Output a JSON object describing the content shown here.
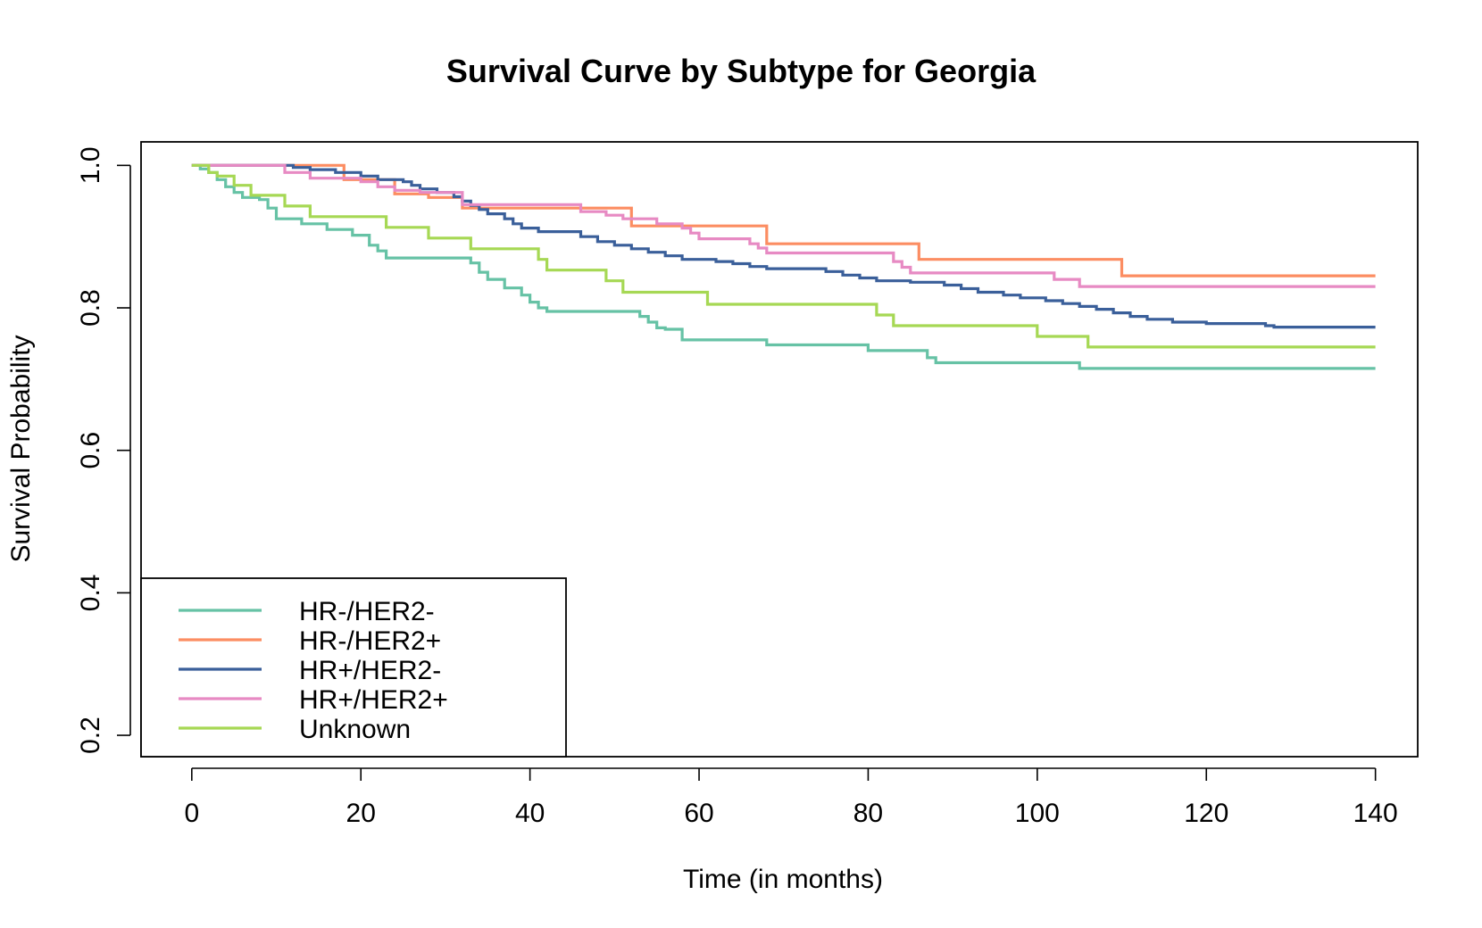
{
  "chart_data": {
    "type": "line",
    "step": true,
    "title": "Survival Curve by Subtype for Georgia",
    "xlabel": "Time (in months)",
    "ylabel": "Survival Probability",
    "xlim": [
      -6,
      145
    ],
    "ylim": [
      0.17,
      1.033
    ],
    "xticks": [
      "0",
      "20",
      "40",
      "60",
      "80",
      "100",
      "120",
      "140"
    ],
    "yticks": [
      "0.2",
      "0.4",
      "0.6",
      "0.8",
      "1.0"
    ],
    "grid": false,
    "legend_position": "bottom-left",
    "series": [
      {
        "name": "HR-/HER2-",
        "color": "#66c2a5",
        "points": [
          [
            0,
            1.0
          ],
          [
            1,
            0.995
          ],
          [
            2,
            0.99
          ],
          [
            3,
            0.98
          ],
          [
            4,
            0.97
          ],
          [
            5,
            0.962
          ],
          [
            6,
            0.955
          ],
          [
            8,
            0.952
          ],
          [
            9,
            0.94
          ],
          [
            10,
            0.925
          ],
          [
            13,
            0.918
          ],
          [
            16,
            0.91
          ],
          [
            18,
            0.91
          ],
          [
            19,
            0.902
          ],
          [
            20,
            0.902
          ],
          [
            21,
            0.888
          ],
          [
            22,
            0.88
          ],
          [
            23,
            0.87
          ],
          [
            26,
            0.87
          ],
          [
            32,
            0.87
          ],
          [
            33,
            0.863
          ],
          [
            34,
            0.85
          ],
          [
            35,
            0.84
          ],
          [
            37,
            0.828
          ],
          [
            39,
            0.818
          ],
          [
            40,
            0.808
          ],
          [
            41,
            0.8
          ],
          [
            42,
            0.795
          ],
          [
            50,
            0.795
          ],
          [
            53,
            0.788
          ],
          [
            54,
            0.78
          ],
          [
            55,
            0.772
          ],
          [
            56,
            0.77
          ],
          [
            58,
            0.755
          ],
          [
            68,
            0.748
          ],
          [
            80,
            0.74
          ],
          [
            87,
            0.73
          ],
          [
            88,
            0.723
          ],
          [
            105,
            0.715
          ],
          [
            140,
            0.715
          ]
        ]
      },
      {
        "name": "HR-/HER2+",
        "color": "#fc8d62",
        "points": [
          [
            0,
            1.0
          ],
          [
            18,
            0.98
          ],
          [
            24,
            0.96
          ],
          [
            28,
            0.955
          ],
          [
            32,
            0.94
          ],
          [
            45,
            0.94
          ],
          [
            52,
            0.915
          ],
          [
            60,
            0.915
          ],
          [
            68,
            0.89
          ],
          [
            86,
            0.868
          ],
          [
            110,
            0.845
          ],
          [
            140,
            0.845
          ]
        ]
      },
      {
        "name": "HR+/HER2-",
        "color": "#3a5f9a",
        "points": [
          [
            0,
            1.0
          ],
          [
            11,
            1.0
          ],
          [
            12,
            0.997
          ],
          [
            14,
            0.994
          ],
          [
            17,
            0.99
          ],
          [
            20,
            0.985
          ],
          [
            22,
            0.98
          ],
          [
            25,
            0.977
          ],
          [
            26,
            0.972
          ],
          [
            27,
            0.967
          ],
          [
            29,
            0.962
          ],
          [
            31,
            0.956
          ],
          [
            32,
            0.95
          ],
          [
            33,
            0.944
          ],
          [
            34,
            0.938
          ],
          [
            35,
            0.932
          ],
          [
            37,
            0.925
          ],
          [
            38,
            0.918
          ],
          [
            39,
            0.912
          ],
          [
            41,
            0.907
          ],
          [
            46,
            0.9
          ],
          [
            48,
            0.893
          ],
          [
            50,
            0.888
          ],
          [
            52,
            0.883
          ],
          [
            54,
            0.878
          ],
          [
            56,
            0.873
          ],
          [
            58,
            0.868
          ],
          [
            62,
            0.865
          ],
          [
            64,
            0.862
          ],
          [
            66,
            0.858
          ],
          [
            68,
            0.855
          ],
          [
            75,
            0.851
          ],
          [
            77,
            0.846
          ],
          [
            79,
            0.842
          ],
          [
            81,
            0.838
          ],
          [
            85,
            0.836
          ],
          [
            89,
            0.832
          ],
          [
            91,
            0.827
          ],
          [
            93,
            0.822
          ],
          [
            96,
            0.818
          ],
          [
            98,
            0.814
          ],
          [
            101,
            0.81
          ],
          [
            103,
            0.806
          ],
          [
            105,
            0.802
          ],
          [
            107,
            0.798
          ],
          [
            109,
            0.793
          ],
          [
            111,
            0.788
          ],
          [
            113,
            0.784
          ],
          [
            116,
            0.78
          ],
          [
            120,
            0.778
          ],
          [
            127,
            0.775
          ],
          [
            128,
            0.773
          ],
          [
            140,
            0.773
          ]
        ]
      },
      {
        "name": "HR+/HER2+",
        "color": "#e78ac3",
        "points": [
          [
            0,
            1.0
          ],
          [
            11,
            0.99
          ],
          [
            14,
            0.982
          ],
          [
            20,
            0.977
          ],
          [
            22,
            0.97
          ],
          [
            24,
            0.965
          ],
          [
            27,
            0.962
          ],
          [
            32,
            0.945
          ],
          [
            46,
            0.935
          ],
          [
            49,
            0.93
          ],
          [
            51,
            0.925
          ],
          [
            55,
            0.918
          ],
          [
            58,
            0.912
          ],
          [
            59,
            0.905
          ],
          [
            60,
            0.897
          ],
          [
            66,
            0.89
          ],
          [
            67,
            0.884
          ],
          [
            68,
            0.877
          ],
          [
            83,
            0.865
          ],
          [
            84,
            0.857
          ],
          [
            85,
            0.849
          ],
          [
            102,
            0.84
          ],
          [
            105,
            0.83
          ],
          [
            140,
            0.83
          ]
        ]
      },
      {
        "name": "Unknown",
        "color": "#a6d854",
        "points": [
          [
            0,
            1.0
          ],
          [
            2,
            0.99
          ],
          [
            3,
            0.985
          ],
          [
            5,
            0.972
          ],
          [
            7,
            0.958
          ],
          [
            11,
            0.943
          ],
          [
            14,
            0.928
          ],
          [
            23,
            0.913
          ],
          [
            28,
            0.898
          ],
          [
            33,
            0.883
          ],
          [
            41,
            0.868
          ],
          [
            42,
            0.853
          ],
          [
            49,
            0.838
          ],
          [
            51,
            0.822
          ],
          [
            61,
            0.805
          ],
          [
            81,
            0.79
          ],
          [
            83,
            0.775
          ],
          [
            100,
            0.76
          ],
          [
            106,
            0.745
          ],
          [
            140,
            0.745
          ]
        ]
      }
    ]
  }
}
